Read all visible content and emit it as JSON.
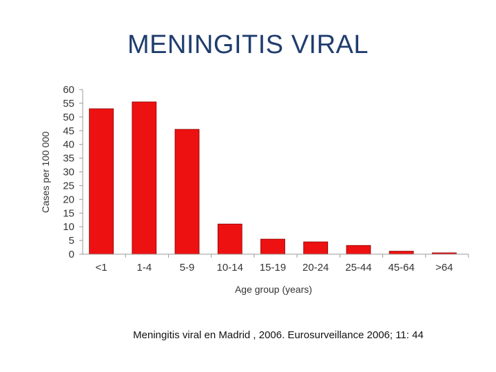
{
  "slide": {
    "title": "MENINGITIS VIRAL",
    "caption": "Meningitis viral en Madrid , 2006.  Eurosurveillance  2006; 11: 44"
  },
  "chart_data": {
    "type": "bar",
    "categories": [
      "<1",
      "1-4",
      "5-9",
      "10-14",
      "15-19",
      "20-24",
      "25-44",
      "45-64",
      ">64"
    ],
    "values": [
      53,
      55.5,
      45.5,
      11,
      5.5,
      4.5,
      3.2,
      1.1,
      0.5
    ],
    "xlabel": "Age group (years)",
    "ylabel": "Cases per 100 000",
    "ylim": [
      0,
      60
    ],
    "yticks": [
      0,
      5,
      10,
      15,
      20,
      25,
      30,
      35,
      40,
      45,
      50,
      55,
      60
    ],
    "grid": false,
    "bar_color": "#ee1111"
  }
}
